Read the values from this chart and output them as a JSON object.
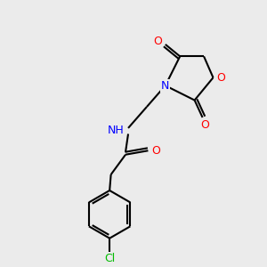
{
  "background_color": "#ebebeb",
  "bond_color": "#000000",
  "N_color": "#0000ff",
  "O_color": "#ff0000",
  "Cl_color": "#00bb00",
  "line_width": 1.5,
  "figsize": [
    3.0,
    3.0
  ],
  "dpi": 100,
  "xlim": [
    0,
    10
  ],
  "ylim": [
    0,
    10
  ]
}
